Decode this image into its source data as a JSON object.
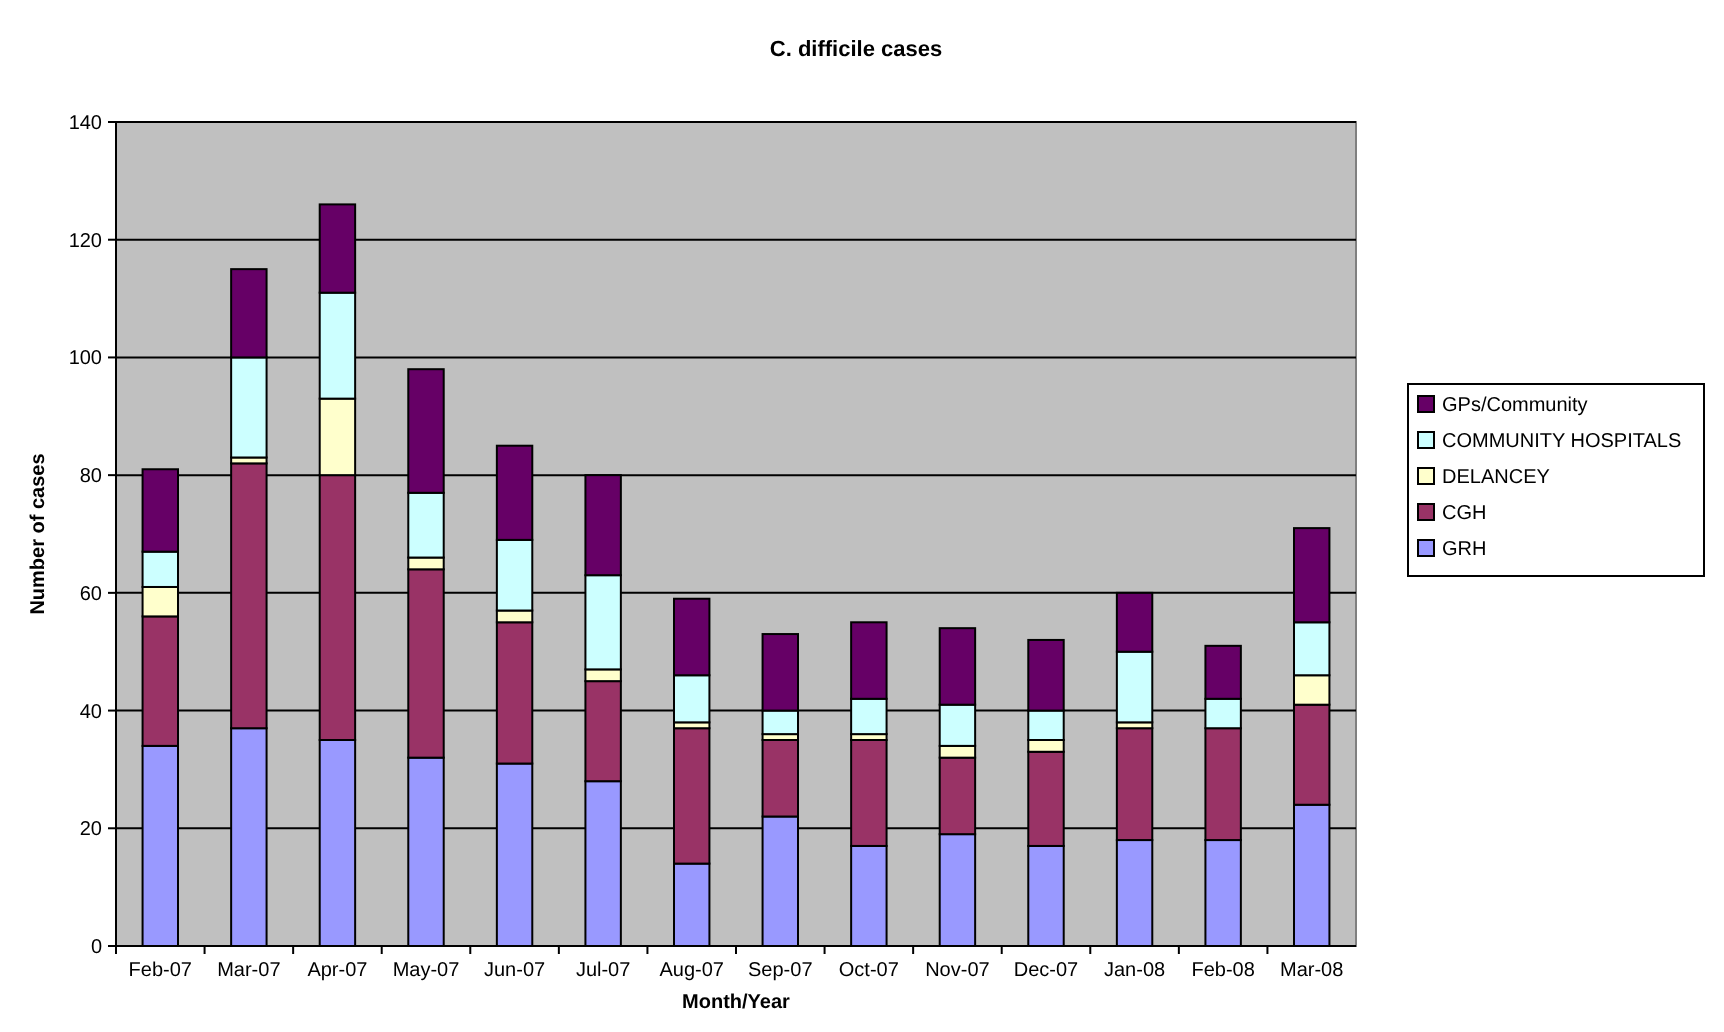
{
  "chart_data": {
    "type": "bar",
    "title": "C. difficile cases",
    "xlabel": "Month/Year",
    "ylabel": "Number of cases",
    "categories": [
      "Feb-07",
      "Mar-07",
      "Apr-07",
      "May-07",
      "Jun-07",
      "Jul-07",
      "Aug-07",
      "Sep-07",
      "Oct-07",
      "Nov-07",
      "Dec-07",
      "Jan-08",
      "Feb-08",
      "Mar-08"
    ],
    "stacked": true,
    "ylim": [
      0,
      140
    ],
    "yticks": [
      0,
      20,
      40,
      60,
      80,
      100,
      120,
      140
    ],
    "grid": "y",
    "legend": "right",
    "series": [
      {
        "name": "GRH",
        "color": "#9999ff",
        "values": [
          34,
          37,
          35,
          32,
          31,
          28,
          14,
          22,
          17,
          19,
          17,
          18,
          18,
          24
        ]
      },
      {
        "name": "CGH",
        "color": "#993366",
        "values": [
          22,
          45,
          45,
          32,
          24,
          17,
          23,
          13,
          18,
          13,
          16,
          19,
          19,
          17
        ]
      },
      {
        "name": "DELANCEY",
        "color": "#ffffcc",
        "values": [
          5,
          1,
          13,
          2,
          2,
          2,
          1,
          1,
          1,
          2,
          2,
          1,
          0,
          5
        ]
      },
      {
        "name": "COMMUNITY HOSPITALS",
        "color": "#ccffff",
        "values": [
          6,
          17,
          18,
          11,
          12,
          16,
          8,
          4,
          6,
          7,
          5,
          12,
          5,
          9
        ]
      },
      {
        "name": "GPs/Community",
        "color": "#660066",
        "values": [
          14,
          15,
          15,
          21,
          16,
          17,
          13,
          13,
          13,
          13,
          12,
          10,
          9,
          16
        ]
      }
    ]
  }
}
